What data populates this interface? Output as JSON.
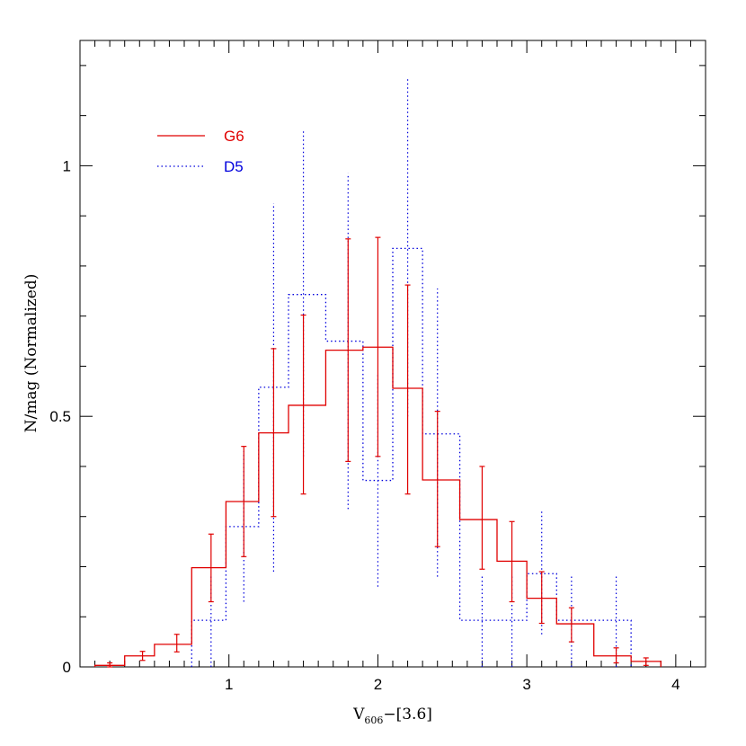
{
  "chart_data": {
    "type": "histogram",
    "xlabel_main": "V",
    "xlabel_sub": "606",
    "xlabel_rest": "−[3.6]",
    "ylabel": "N/mag (Normalized)",
    "xlim": [
      0.0,
      4.2
    ],
    "ylim": [
      0.0,
      1.25
    ],
    "x_ticks": [
      1,
      2,
      3,
      4
    ],
    "x_tick_labels": [
      "1",
      "2",
      "3",
      "4"
    ],
    "y_ticks": [
      0,
      0.5,
      1
    ],
    "y_tick_labels": [
      "0",
      "0.5",
      "1"
    ],
    "grid": false,
    "legend_position": "top-left",
    "series": [
      {
        "name": "G6",
        "color": "#e00000",
        "style": "solid",
        "bin_edges": [
          0.1,
          0.3,
          0.5,
          0.75,
          0.98,
          1.2,
          1.4,
          1.65,
          1.9,
          2.1,
          2.3,
          2.55,
          2.8,
          3.0,
          3.2,
          3.45,
          3.7,
          3.9
        ],
        "values": [
          0.003,
          0.022,
          0.045,
          0.198,
          0.33,
          0.467,
          0.522,
          0.632,
          0.638,
          0.556,
          0.373,
          0.294,
          0.211,
          0.137,
          0.086,
          0.022,
          0.011
        ],
        "errors": [
          {
            "x": 0.2,
            "lo": 0.0,
            "hi": 0.008
          },
          {
            "x": 0.42,
            "lo": 0.013,
            "hi": 0.031
          },
          {
            "x": 0.65,
            "lo": 0.03,
            "hi": 0.065
          },
          {
            "x": 0.88,
            "lo": 0.13,
            "hi": 0.265
          },
          {
            "x": 1.1,
            "lo": 0.22,
            "hi": 0.44
          },
          {
            "x": 1.3,
            "lo": 0.3,
            "hi": 0.635
          },
          {
            "x": 1.5,
            "lo": 0.345,
            "hi": 0.702
          },
          {
            "x": 1.8,
            "lo": 0.41,
            "hi": 0.854
          },
          {
            "x": 2.0,
            "lo": 0.42,
            "hi": 0.857
          },
          {
            "x": 2.2,
            "lo": 0.345,
            "hi": 0.762
          },
          {
            "x": 2.4,
            "lo": 0.24,
            "hi": 0.51
          },
          {
            "x": 2.7,
            "lo": 0.195,
            "hi": 0.4
          },
          {
            "x": 2.9,
            "lo": 0.13,
            "hi": 0.29
          },
          {
            "x": 3.1,
            "lo": 0.087,
            "hi": 0.19
          },
          {
            "x": 3.3,
            "lo": 0.05,
            "hi": 0.118
          },
          {
            "x": 3.6,
            "lo": 0.008,
            "hi": 0.038
          },
          {
            "x": 3.8,
            "lo": 0.003,
            "hi": 0.018
          }
        ]
      },
      {
        "name": "D5",
        "color": "#0000dd",
        "style": "dotted",
        "bin_edges": [
          0.75,
          0.98,
          1.2,
          1.4,
          1.65,
          1.9,
          2.1,
          2.3,
          2.55,
          2.8,
          3.0,
          3.2,
          3.45,
          3.7
        ],
        "values": [
          0.093,
          0.28,
          0.558,
          0.743,
          0.65,
          0.372,
          0.835,
          0.465,
          0.093,
          0.093,
          0.186,
          0.093,
          0.093
        ],
        "errors": [
          {
            "x": 0.88,
            "lo": 0.0,
            "hi": 0.185
          },
          {
            "x": 1.1,
            "lo": 0.13,
            "hi": 0.43
          },
          {
            "x": 1.3,
            "lo": 0.19,
            "hi": 0.925
          },
          {
            "x": 1.5,
            "lo": 0.42,
            "hi": 1.07
          },
          {
            "x": 1.8,
            "lo": 0.315,
            "hi": 0.985
          },
          {
            "x": 2.0,
            "lo": 0.16,
            "hi": 0.585
          },
          {
            "x": 2.2,
            "lo": 0.5,
            "hi": 1.175
          },
          {
            "x": 2.4,
            "lo": 0.18,
            "hi": 0.755
          },
          {
            "x": 2.7,
            "lo": 0.0,
            "hi": 0.185
          },
          {
            "x": 2.9,
            "lo": 0.0,
            "hi": 0.185
          },
          {
            "x": 3.1,
            "lo": 0.065,
            "hi": 0.31
          },
          {
            "x": 3.3,
            "lo": 0.0,
            "hi": 0.185
          },
          {
            "x": 3.6,
            "lo": 0.0,
            "hi": 0.185
          }
        ]
      }
    ]
  }
}
